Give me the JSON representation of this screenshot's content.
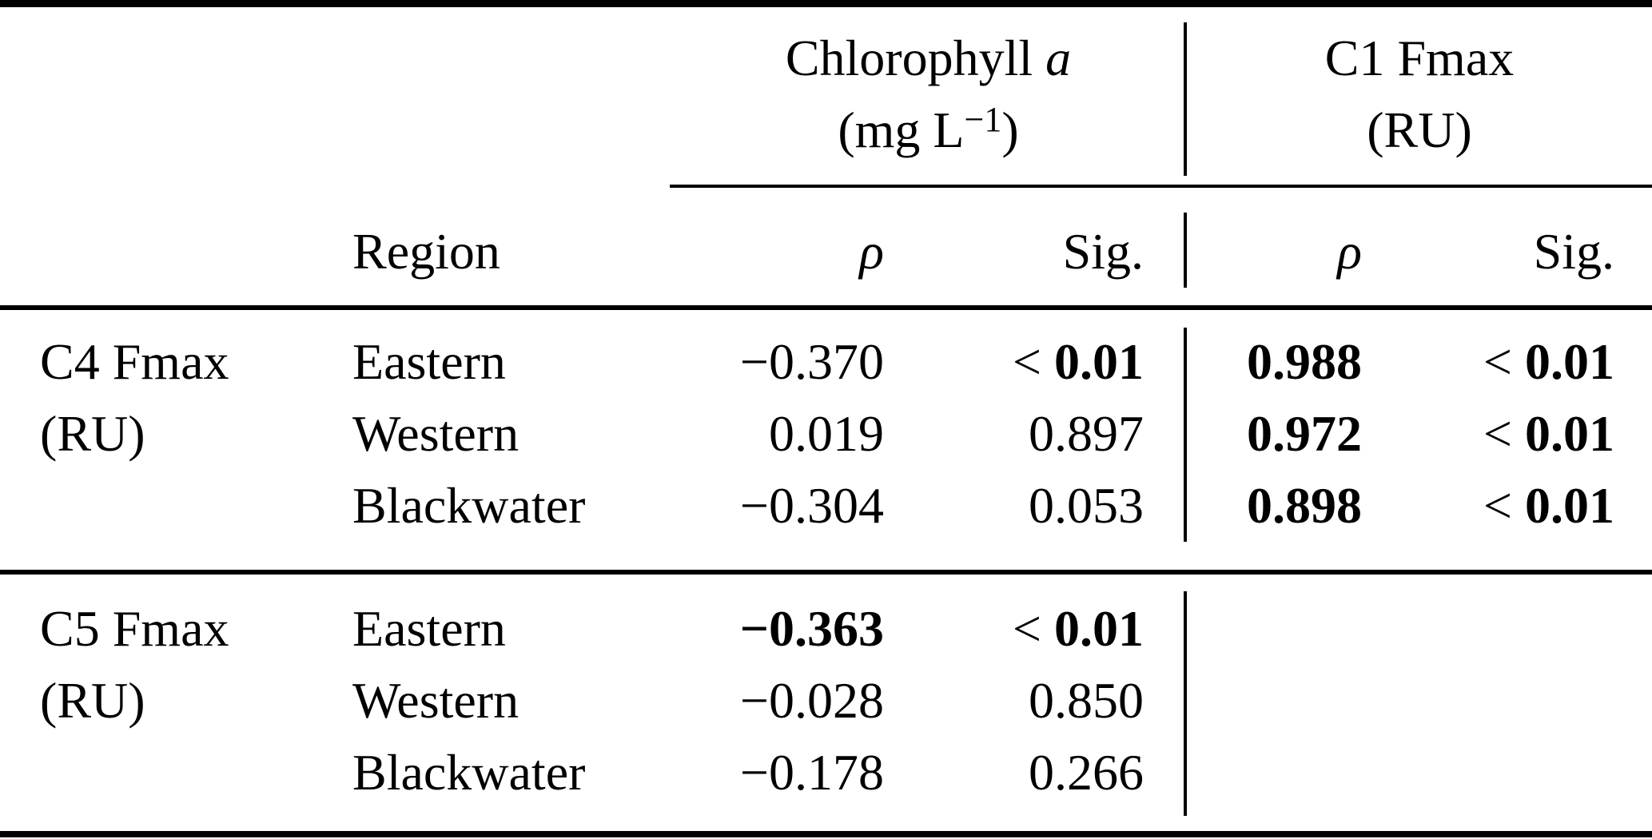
{
  "colors": {
    "background": "#ffffff",
    "text": "#000000",
    "rule": "#000000"
  },
  "table": {
    "col_groups": [
      {
        "title_main": "Chlorophyll",
        "title_italic": "a",
        "unit_pre": "(mg L",
        "unit_sup": "−1",
        "unit_post": ")"
      },
      {
        "title_main": "C1 Fmax",
        "title_italic": "",
        "unit_pre": "(RU)",
        "unit_sup": "",
        "unit_post": ""
      }
    ],
    "subheader": {
      "region": "Region",
      "rho1": "ρ",
      "sig1": "Sig.",
      "rho2": "ρ",
      "sig2": "Sig."
    },
    "lt_symbol": "<",
    "rows": [
      {
        "stub": "C4 Fmax",
        "region": "Eastern",
        "cells": [
          {
            "text": "−0.370",
            "bold": false,
            "lt": false
          },
          {
            "text": "0.01",
            "bold": true,
            "lt": true
          },
          {
            "text": "0.988",
            "bold": true,
            "lt": false
          },
          {
            "text": "0.01",
            "bold": true,
            "lt": true
          }
        ]
      },
      {
        "stub": "(RU)",
        "region": "Western",
        "cells": [
          {
            "text": "0.019",
            "bold": false,
            "lt": false
          },
          {
            "text": "0.897",
            "bold": false,
            "lt": false
          },
          {
            "text": "0.972",
            "bold": true,
            "lt": false
          },
          {
            "text": "0.01",
            "bold": true,
            "lt": true
          }
        ]
      },
      {
        "stub": "",
        "region": "Blackwater",
        "cells": [
          {
            "text": "−0.304",
            "bold": false,
            "lt": false
          },
          {
            "text": "0.053",
            "bold": false,
            "lt": false
          },
          {
            "text": "0.898",
            "bold": true,
            "lt": false
          },
          {
            "text": "0.01",
            "bold": true,
            "lt": true
          }
        ]
      },
      {
        "stub": "C5 Fmax",
        "region": "Eastern",
        "cells": [
          {
            "text": "−0.363",
            "bold": true,
            "lt": false
          },
          {
            "text": "0.01",
            "bold": true,
            "lt": true
          },
          {
            "text": "",
            "bold": false,
            "lt": false
          },
          {
            "text": "",
            "bold": false,
            "lt": false
          }
        ]
      },
      {
        "stub": "(RU)",
        "region": "Western",
        "cells": [
          {
            "text": "−0.028",
            "bold": false,
            "lt": false
          },
          {
            "text": "0.850",
            "bold": false,
            "lt": false
          },
          {
            "text": "",
            "bold": false,
            "lt": false
          },
          {
            "text": "",
            "bold": false,
            "lt": false
          }
        ]
      },
      {
        "stub": "",
        "region": "Blackwater",
        "cells": [
          {
            "text": "−0.178",
            "bold": false,
            "lt": false
          },
          {
            "text": "0.266",
            "bold": false,
            "lt": false
          },
          {
            "text": "",
            "bold": false,
            "lt": false
          },
          {
            "text": "",
            "bold": false,
            "lt": false
          }
        ]
      }
    ]
  }
}
